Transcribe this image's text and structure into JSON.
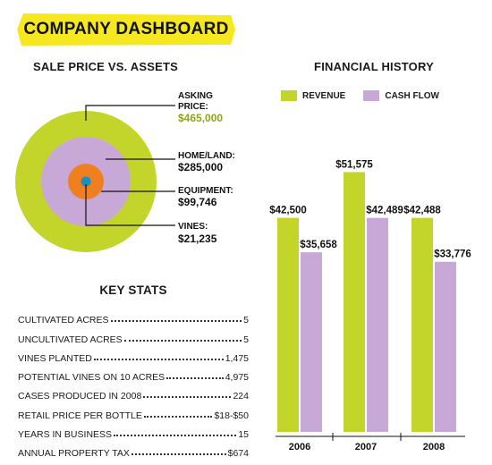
{
  "header": {
    "title": "COMPANY DASHBOARD",
    "banner_color": "#f5e820"
  },
  "donut": {
    "title": "SALE PRICE VS. ASSETS",
    "items": [
      {
        "label_line1": "ASKING",
        "label_line2": "PRICE:",
        "value": "$465,000",
        "color": "#c3d52b",
        "value_color": "#8fa51a"
      },
      {
        "label_line1": "HOME/LAND:",
        "value": "$285,000",
        "color": "#c8a8d6"
      },
      {
        "label_line1": "EQUIPMENT:",
        "value": "$99,746",
        "color": "#f07f1f"
      },
      {
        "label_line1": "VINES:",
        "value": "$21,235",
        "color": "#1c8fc0"
      }
    ]
  },
  "stats": {
    "title": "KEY STATS",
    "rows": [
      {
        "label": "CULTIVATED ACRES",
        "value": "5"
      },
      {
        "label": "UNCULTIVATED ACRES",
        "value": "5"
      },
      {
        "label": "VINES PLANTED",
        "value": "1,475"
      },
      {
        "label": "POTENTIAL VINES ON 10 ACRES",
        "value": "4,975"
      },
      {
        "label": "CASES PRODUCED IN 2008",
        "value": "224"
      },
      {
        "label": "RETAIL PRICE PER BOTTLE",
        "value": "$18-$50"
      },
      {
        "label": "YEARS IN BUSINESS",
        "value": "15"
      },
      {
        "label": "ANNUAL PROPERTY TAX",
        "value": "$674"
      }
    ]
  },
  "chart_data": {
    "type": "bar",
    "title": "FINANCIAL HISTORY",
    "categories": [
      "2006",
      "2007",
      "2008"
    ],
    "series": [
      {
        "name": "REVENUE",
        "color": "#c3d52b",
        "values": [
          42500,
          51575,
          42488
        ],
        "labels": [
          "$42,500",
          "$51,575",
          "$42,488"
        ]
      },
      {
        "name": "CASH FLOW",
        "color": "#c8a8d6",
        "values": [
          35658,
          42489,
          33776
        ],
        "labels": [
          "$35,658",
          "$42,489",
          "$33,776"
        ]
      }
    ],
    "ylim": [
      0,
      60000
    ],
    "grid": false,
    "legend": "top"
  }
}
